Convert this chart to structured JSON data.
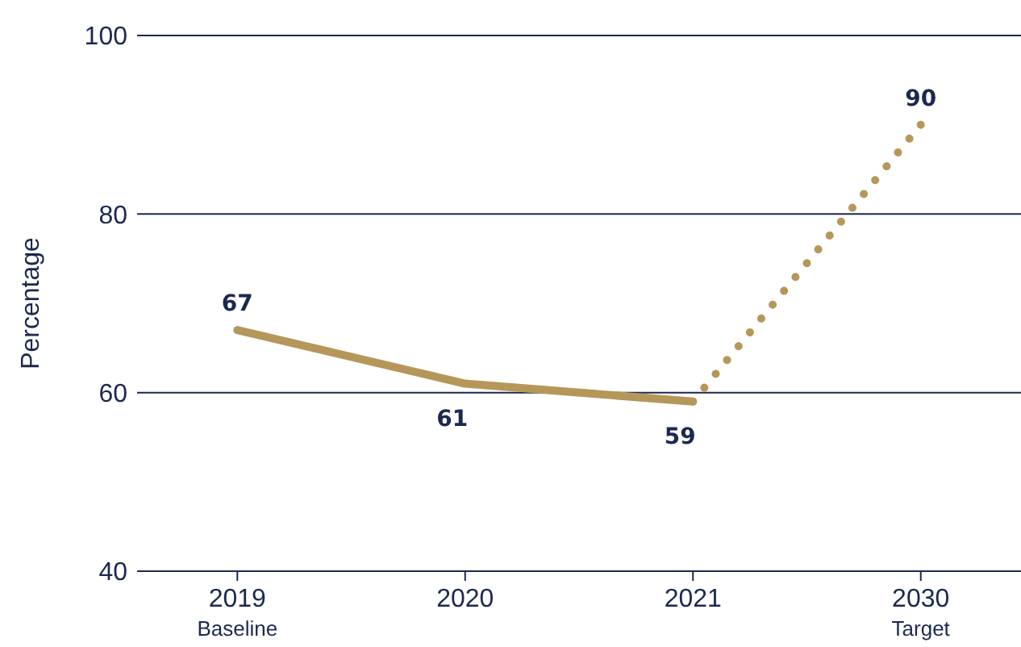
{
  "chart_data": {
    "type": "line",
    "ylabel": "Percentage",
    "categories": [
      "2019\nBaseline",
      "2020",
      "2021",
      "2030\nTarget"
    ],
    "series": [
      {
        "color": "#b5975a",
        "values": [
          67,
          61,
          59,
          null
        ],
        "value_labels": [
          "67",
          "61",
          "59",
          null
        ],
        "line_style": "solid"
      },
      {
        "color": "#b5975a",
        "values": [
          null,
          null,
          59,
          90
        ],
        "value_labels": [
          null,
          null,
          null,
          "90"
        ],
        "line_style": "dotted"
      }
    ],
    "ylim": [
      40,
      100
    ],
    "yticks": [
      40,
      60,
      80,
      100
    ],
    "grid": "y",
    "marker": "none"
  }
}
